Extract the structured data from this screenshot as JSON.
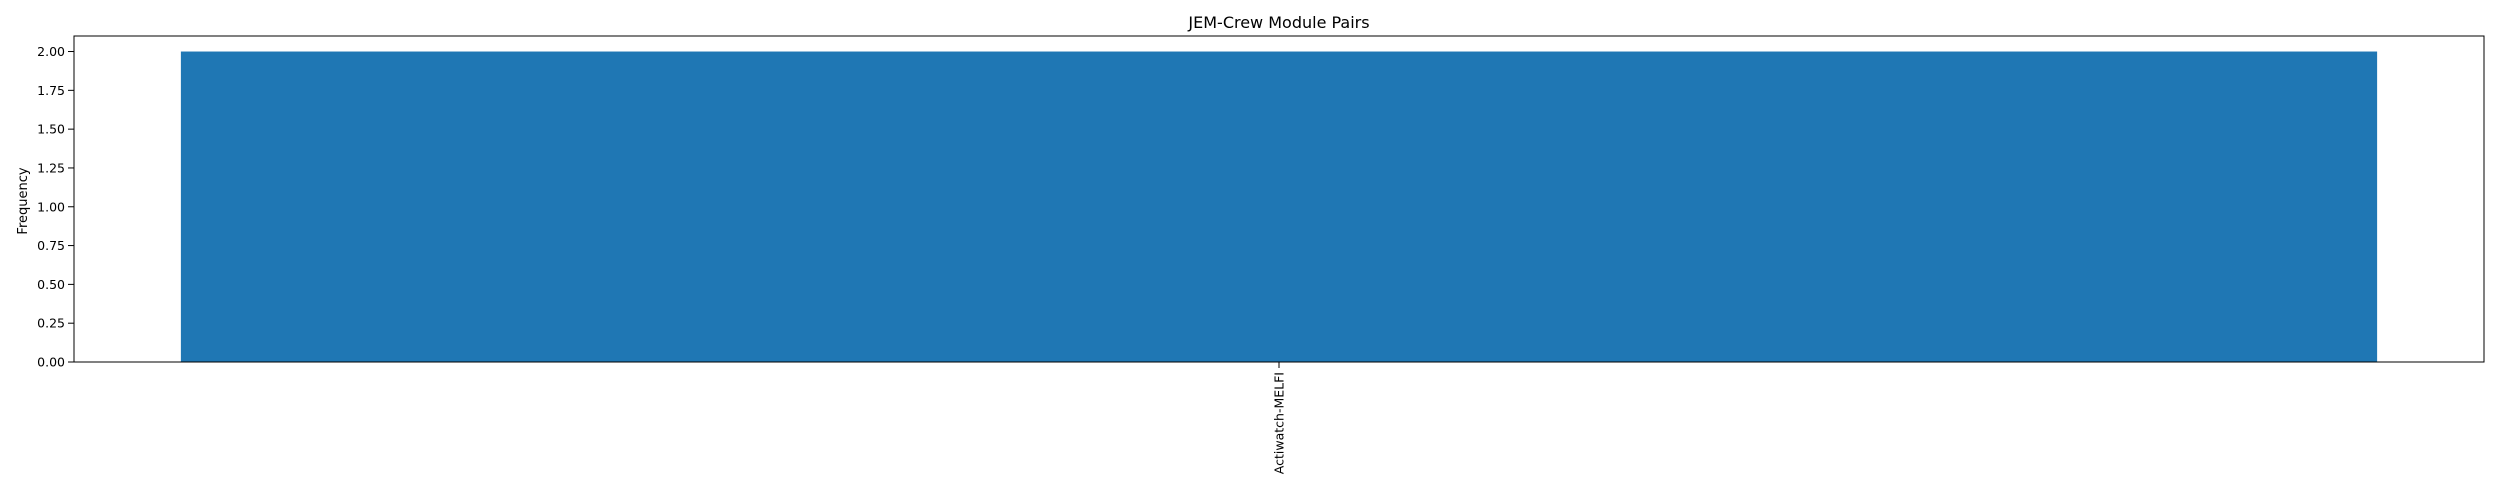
{
  "chart_data": {
    "type": "bar",
    "title": "JEM-Crew Module Pairs",
    "xlabel": "",
    "ylabel": "Frequency",
    "categories": [
      "Actiwatch-MELFI"
    ],
    "values": [
      2
    ],
    "ylim": [
      0,
      2.1
    ],
    "yticks": [
      0.0,
      0.25,
      0.5,
      0.75,
      1.0,
      1.25,
      1.5,
      1.75,
      2.0
    ],
    "ytick_labels": [
      "0.00",
      "0.25",
      "0.50",
      "0.75",
      "1.00",
      "1.25",
      "1.50",
      "1.75",
      "2.00"
    ],
    "grid": false,
    "bar_color": "#1f77b4"
  }
}
